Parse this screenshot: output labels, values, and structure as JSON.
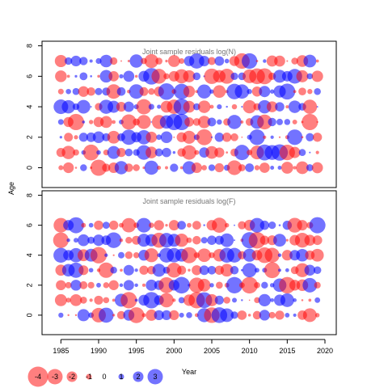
{
  "chart_data": {
    "type": "bubble-residuals",
    "y_label": "Age",
    "x_label": "Year",
    "x_ticks": [
      "1985",
      "1990",
      "1995",
      "2000",
      "2005",
      "2010",
      "2015",
      "2020"
    ],
    "y_ticks": [
      "0",
      "2",
      "4",
      "6",
      "8"
    ],
    "x_range": [
      1982.5,
      2021.5
    ],
    "y_range": [
      -1.3,
      8.3
    ],
    "years": [
      1985,
      2019
    ],
    "ages": [
      0,
      7
    ],
    "colors": {
      "positive": "#0000FF",
      "negative": "#FF0000",
      "positive_alpha": 0.55,
      "negative_alpha": 0.5
    },
    "panels": [
      {
        "id": "logN",
        "title": "Joint sample residuals log(N)",
        "ages": [
          0,
          1,
          2,
          3,
          4,
          5,
          6,
          7
        ],
        "seed": 7
      },
      {
        "id": "logF",
        "title": "Joint sample residuals log(F)",
        "ages": [
          0,
          1,
          2,
          3,
          4,
          5,
          6
        ],
        "seed": 31
      }
    ],
    "legend": {
      "values": [
        -4,
        -3,
        -2,
        -1,
        0,
        1,
        2,
        3
      ],
      "labels": [
        "-4",
        "-3",
        "-2",
        "-1",
        "0",
        "1",
        "2",
        "3"
      ]
    }
  }
}
